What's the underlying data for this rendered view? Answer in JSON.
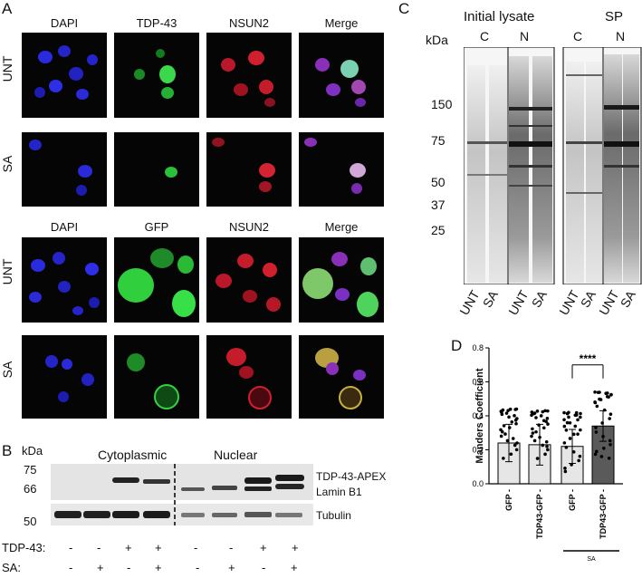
{
  "panel_a": {
    "label": "A",
    "top_headers": [
      "DAPI",
      "TDP-43",
      "NSUN2",
      "Merge"
    ],
    "bottom_headers": [
      "DAPI",
      "GFP",
      "NSUN2",
      "Merge"
    ],
    "rows": [
      "UNT",
      "SA",
      "UNT",
      "SA"
    ]
  },
  "panel_b": {
    "label": "B",
    "kda": "kDa",
    "markers": [
      "75",
      "66",
      "50"
    ],
    "cyto": "Cytoplasmic",
    "nuclear": "Nuclear",
    "band_labels": [
      "TDP-43-APEX",
      "Lamin B1",
      "Tubulin"
    ],
    "tdp_row_label": "TDP-43:",
    "sa_row_label": "SA:",
    "tdp_signs": [
      "-",
      "-",
      "+",
      "+",
      "-",
      "-",
      "+",
      "+"
    ],
    "sa_signs": [
      "-",
      "+",
      "-",
      "+",
      "-",
      "+",
      "-",
      "+"
    ]
  },
  "panel_c": {
    "label": "C",
    "kda": "kDa",
    "initial": "Initial lysate",
    "sp": "SP",
    "frac_c": "C",
    "frac_n": "N",
    "markers": [
      "150",
      "75",
      "50",
      "37",
      "25"
    ],
    "lanes": [
      "UNT",
      "SA",
      "UNT",
      "SA"
    ]
  },
  "panel_d": {
    "label": "D",
    "ylabel": "Manders Coefficient",
    "sig": "****",
    "group_label": "SA",
    "colors": {
      "light": "#e6e6e6",
      "dark": "#5a5a5a"
    }
  },
  "chart_data": {
    "type": "bar",
    "categories": [
      "GFP",
      "TDP43-GFP",
      "GFP",
      "TDP43-GFP"
    ],
    "values": [
      0.24,
      0.23,
      0.22,
      0.34
    ],
    "error": [
      0.11,
      0.12,
      0.1,
      0.09
    ],
    "ylabel": "Manders Coefficient",
    "ylim": [
      0,
      0.8
    ],
    "yticks": [
      0.0,
      0.2,
      0.4,
      0.6,
      0.8
    ],
    "annotation": "****"
  }
}
